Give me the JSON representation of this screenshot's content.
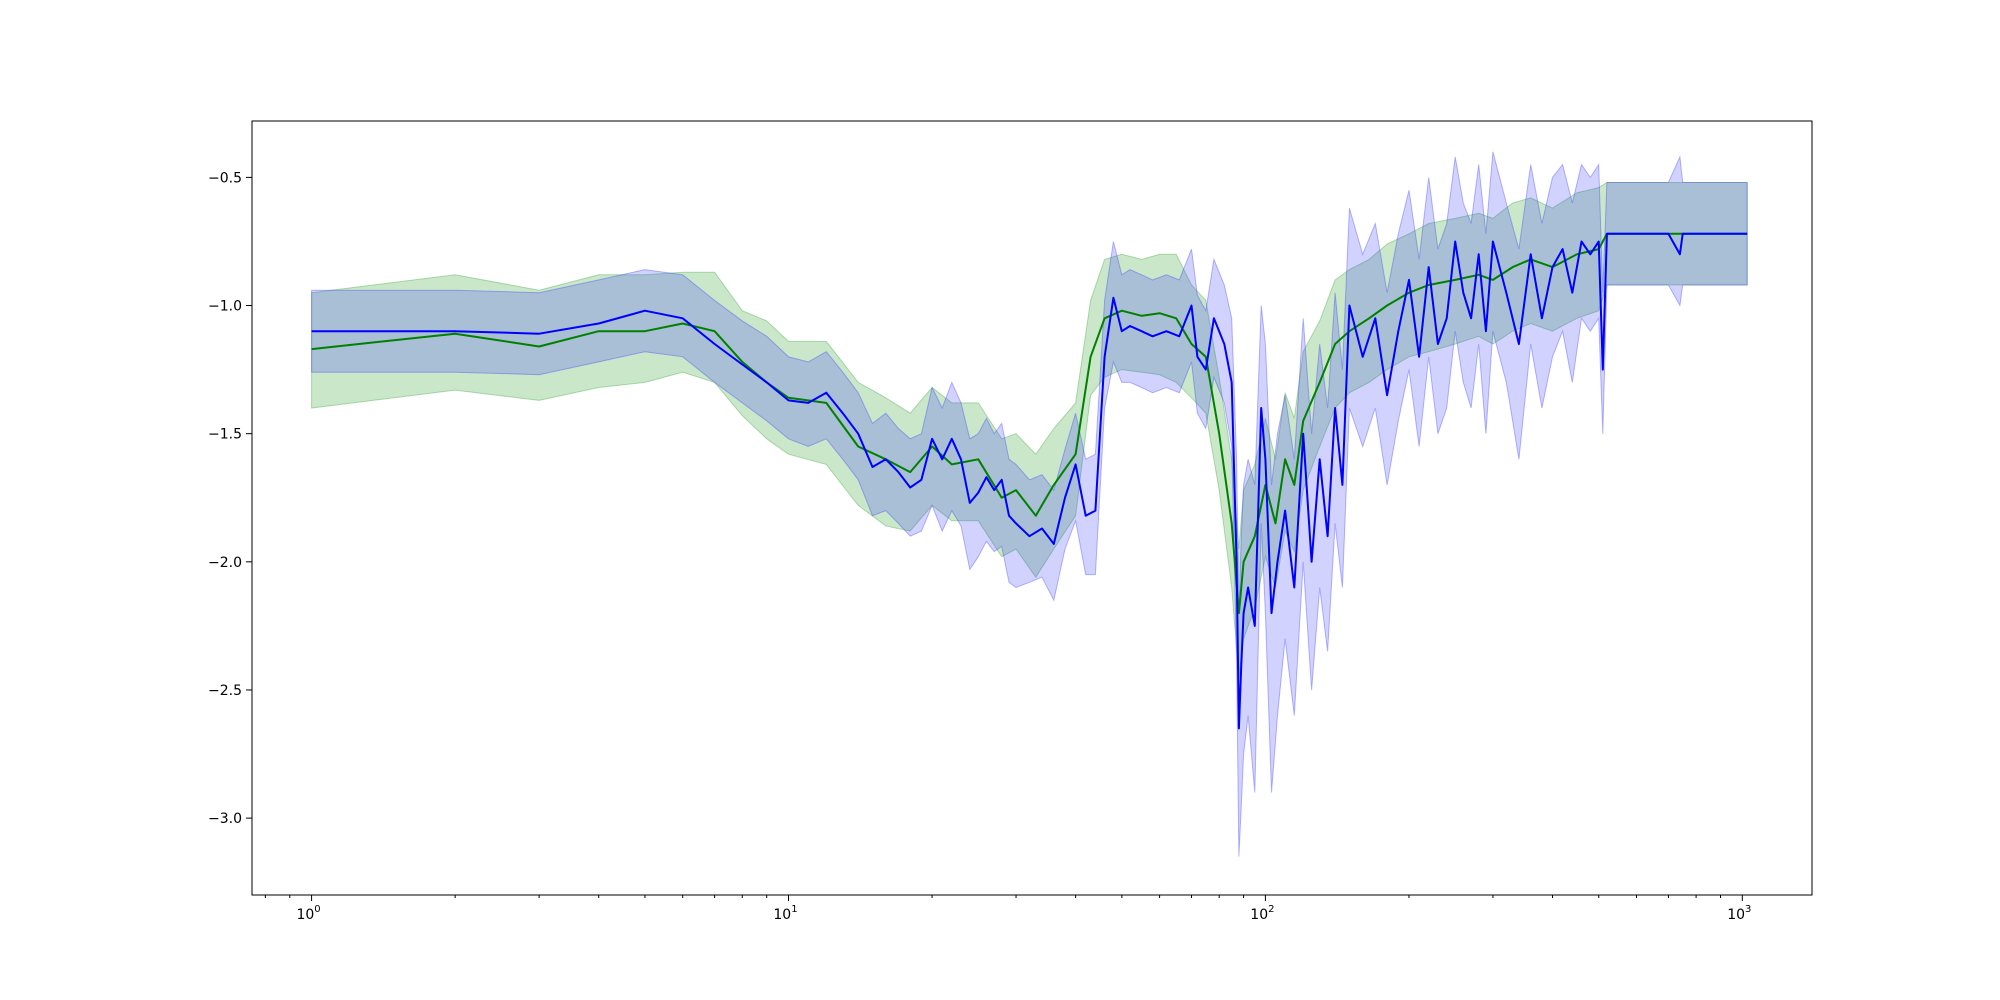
{
  "chart_data": {
    "type": "line",
    "title": "",
    "xlabel": "",
    "ylabel": "",
    "xscale": "log",
    "xlim": [
      0.75,
      1400
    ],
    "ylim": [
      -3.3,
      -0.28
    ],
    "grid": false,
    "yticks": [
      {
        "value": -0.5,
        "label": "−0.5"
      },
      {
        "value": -1.0,
        "label": "−1.0"
      },
      {
        "value": -1.5,
        "label": "−1.5"
      },
      {
        "value": -2.0,
        "label": "−2.0"
      },
      {
        "value": -2.5,
        "label": "−2.5"
      },
      {
        "value": -3.0,
        "label": "−3.0"
      }
    ],
    "xticks": [
      {
        "value": 1,
        "base": "10",
        "exp": "0"
      },
      {
        "value": 10,
        "base": "10",
        "exp": "1"
      },
      {
        "value": 100,
        "base": "10",
        "exp": "2"
      },
      {
        "value": 1000,
        "base": "10",
        "exp": "3"
      }
    ],
    "series": [
      {
        "color": "#008000",
        "band_color": "#2ca02c",
        "band_opacity": 0.25,
        "x": [
          1,
          2,
          3,
          4,
          5,
          6,
          7,
          8,
          9,
          10,
          12,
          14,
          16,
          18,
          20,
          22,
          25,
          28,
          30,
          33,
          36,
          40,
          43,
          46,
          50,
          55,
          60,
          65,
          70,
          75,
          80,
          85,
          88,
          90,
          95,
          100,
          105,
          110,
          115,
          120,
          130,
          140,
          150,
          165,
          180,
          200,
          220,
          250,
          280,
          300,
          330,
          360,
          400,
          450,
          500,
          520,
          600,
          700,
          750,
          800,
          900,
          1024
        ],
        "y": [
          -1.17,
          -1.11,
          -1.16,
          -1.1,
          -1.1,
          -1.07,
          -1.1,
          -1.22,
          -1.3,
          -1.36,
          -1.38,
          -1.55,
          -1.6,
          -1.65,
          -1.55,
          -1.62,
          -1.6,
          -1.75,
          -1.72,
          -1.82,
          -1.7,
          -1.58,
          -1.2,
          -1.05,
          -1.02,
          -1.04,
          -1.03,
          -1.05,
          -1.15,
          -1.2,
          -1.5,
          -1.85,
          -2.2,
          -2.0,
          -1.9,
          -1.7,
          -1.85,
          -1.6,
          -1.7,
          -1.45,
          -1.3,
          -1.15,
          -1.1,
          -1.05,
          -1.0,
          -0.95,
          -0.92,
          -0.9,
          -0.88,
          -0.9,
          -0.85,
          -0.82,
          -0.85,
          -0.8,
          -0.78,
          -0.72,
          -0.72,
          -0.72,
          -0.72,
          -0.72,
          -0.72,
          -0.72
        ],
        "lower": [
          -1.4,
          -1.33,
          -1.37,
          -1.32,
          -1.3,
          -1.26,
          -1.3,
          -1.43,
          -1.52,
          -1.58,
          -1.62,
          -1.78,
          -1.86,
          -1.88,
          -1.78,
          -1.84,
          -1.84,
          -1.98,
          -1.95,
          -2.06,
          -1.95,
          -1.82,
          -1.35,
          -1.28,
          -1.25,
          -1.26,
          -1.27,
          -1.3,
          -1.36,
          -1.42,
          -1.72,
          -2.1,
          -2.45,
          -2.3,
          -2.18,
          -1.98,
          -2.1,
          -1.88,
          -1.96,
          -1.72,
          -1.55,
          -1.4,
          -1.34,
          -1.3,
          -1.25,
          -1.2,
          -1.18,
          -1.15,
          -1.12,
          -1.15,
          -1.1,
          -1.07,
          -1.1,
          -1.05,
          -1.02,
          -0.92,
          -0.92,
          -0.92,
          -0.92,
          -0.92,
          -0.92,
          -0.92
        ],
        "upper": [
          -0.95,
          -0.88,
          -0.94,
          -0.88,
          -0.88,
          -0.87,
          -0.87,
          -1.02,
          -1.06,
          -1.14,
          -1.14,
          -1.3,
          -1.36,
          -1.42,
          -1.32,
          -1.38,
          -1.38,
          -1.52,
          -1.5,
          -1.58,
          -1.48,
          -1.38,
          -0.98,
          -0.82,
          -0.8,
          -0.82,
          -0.8,
          -0.8,
          -0.92,
          -0.98,
          -1.28,
          -1.6,
          -1.95,
          -1.72,
          -1.62,
          -1.44,
          -1.6,
          -1.34,
          -1.44,
          -1.18,
          -1.06,
          -0.9,
          -0.86,
          -0.82,
          -0.76,
          -0.72,
          -0.68,
          -0.66,
          -0.64,
          -0.66,
          -0.6,
          -0.58,
          -0.62,
          -0.56,
          -0.54,
          -0.52,
          -0.52,
          -0.52,
          -0.52,
          -0.52,
          -0.52,
          -0.52
        ]
      },
      {
        "color": "#0000ff",
        "band_color": "#3333ff",
        "band_opacity": 0.22,
        "x": [
          1,
          2,
          3,
          4,
          5,
          6,
          7,
          8,
          9,
          10,
          11,
          12,
          13,
          14,
          15,
          16,
          17,
          18,
          19,
          20,
          21,
          22,
          23,
          24,
          25,
          26,
          27,
          28,
          29,
          30,
          32,
          34,
          36,
          38,
          40,
          42,
          44,
          46,
          48,
          50,
          52,
          55,
          58,
          62,
          66,
          70,
          72,
          75,
          78,
          82,
          85,
          87,
          88,
          89,
          90,
          92,
          95,
          98,
          100,
          103,
          106,
          110,
          115,
          120,
          125,
          130,
          135,
          140,
          145,
          150,
          160,
          170,
          180,
          190,
          200,
          210,
          220,
          230,
          240,
          250,
          260,
          270,
          280,
          290,
          300,
          320,
          340,
          360,
          380,
          400,
          420,
          440,
          460,
          480,
          500,
          510,
          520,
          600,
          700,
          740,
          750,
          760,
          800,
          900,
          1024
        ],
        "y": [
          -1.1,
          -1.1,
          -1.11,
          -1.07,
          -1.02,
          -1.05,
          -1.15,
          -1.23,
          -1.3,
          -1.37,
          -1.38,
          -1.34,
          -1.42,
          -1.5,
          -1.63,
          -1.6,
          -1.65,
          -1.71,
          -1.68,
          -1.52,
          -1.6,
          -1.52,
          -1.6,
          -1.77,
          -1.73,
          -1.67,
          -1.72,
          -1.68,
          -1.82,
          -1.85,
          -1.9,
          -1.87,
          -1.93,
          -1.75,
          -1.62,
          -1.82,
          -1.8,
          -1.2,
          -0.97,
          -1.1,
          -1.08,
          -1.1,
          -1.12,
          -1.1,
          -1.12,
          -1.0,
          -1.2,
          -1.25,
          -1.05,
          -1.15,
          -1.3,
          -2.0,
          -2.65,
          -2.4,
          -2.2,
          -2.1,
          -2.25,
          -1.4,
          -1.6,
          -2.2,
          -2.0,
          -1.8,
          -2.1,
          -1.5,
          -2.0,
          -1.6,
          -1.9,
          -1.4,
          -1.7,
          -1.0,
          -1.2,
          -1.05,
          -1.35,
          -1.1,
          -0.9,
          -1.2,
          -0.85,
          -1.15,
          -1.05,
          -0.75,
          -0.95,
          -1.05,
          -0.8,
          -1.1,
          -0.75,
          -0.95,
          -1.15,
          -0.8,
          -1.05,
          -0.85,
          -0.78,
          -0.95,
          -0.75,
          -0.8,
          -0.75,
          -1.25,
          -0.72,
          -0.72,
          -0.72,
          -0.8,
          -0.72,
          -0.72,
          -0.72,
          -0.72,
          -0.72
        ],
        "lower": [
          -1.26,
          -1.26,
          -1.27,
          -1.22,
          -1.18,
          -1.2,
          -1.3,
          -1.38,
          -1.45,
          -1.52,
          -1.55,
          -1.52,
          -1.6,
          -1.68,
          -1.82,
          -1.8,
          -1.85,
          -1.9,
          -1.88,
          -1.78,
          -1.88,
          -1.8,
          -1.86,
          -2.03,
          -1.98,
          -1.92,
          -1.96,
          -1.94,
          -2.08,
          -2.1,
          -2.08,
          -2.06,
          -2.15,
          -1.95,
          -1.84,
          -2.05,
          -2.05,
          -1.4,
          -1.22,
          -1.3,
          -1.3,
          -1.32,
          -1.34,
          -1.32,
          -1.34,
          -1.22,
          -1.42,
          -1.48,
          -1.28,
          -1.38,
          -1.55,
          -2.4,
          -3.15,
          -2.95,
          -2.75,
          -2.6,
          -2.9,
          -1.85,
          -2.2,
          -2.9,
          -2.6,
          -2.3,
          -2.6,
          -2.0,
          -2.5,
          -2.1,
          -2.35,
          -1.85,
          -2.1,
          -1.4,
          -1.55,
          -1.4,
          -1.7,
          -1.45,
          -1.25,
          -1.55,
          -1.2,
          -1.5,
          -1.4,
          -1.1,
          -1.3,
          -1.4,
          -1.15,
          -1.5,
          -1.1,
          -1.3,
          -1.6,
          -1.15,
          -1.4,
          -1.2,
          -1.1,
          -1.3,
          -1.05,
          -1.1,
          -1.05,
          -1.5,
          -0.92,
          -0.92,
          -0.92,
          -1.0,
          -0.92,
          -0.92,
          -0.92,
          -0.92,
          -0.92
        ],
        "upper": [
          -0.94,
          -0.94,
          -0.95,
          -0.9,
          -0.86,
          -0.88,
          -0.98,
          -1.06,
          -1.12,
          -1.2,
          -1.22,
          -1.18,
          -1.26,
          -1.34,
          -1.46,
          -1.42,
          -1.48,
          -1.52,
          -1.5,
          -1.32,
          -1.4,
          -1.3,
          -1.38,
          -1.52,
          -1.5,
          -1.44,
          -1.5,
          -1.46,
          -1.6,
          -1.62,
          -1.68,
          -1.66,
          -1.72,
          -1.56,
          -1.42,
          -1.6,
          -1.58,
          -0.98,
          -0.75,
          -0.88,
          -0.86,
          -0.88,
          -0.9,
          -0.88,
          -0.9,
          -0.78,
          -0.96,
          -1.02,
          -0.82,
          -0.92,
          -1.05,
          -1.6,
          -2.2,
          -1.9,
          -1.7,
          -1.6,
          -1.7,
          -1.0,
          -1.15,
          -1.7,
          -1.5,
          -1.35,
          -1.6,
          -1.05,
          -1.5,
          -1.15,
          -1.4,
          -0.95,
          -1.25,
          -0.62,
          -0.8,
          -0.68,
          -0.95,
          -0.72,
          -0.55,
          -0.82,
          -0.5,
          -0.78,
          -0.68,
          -0.42,
          -0.6,
          -0.68,
          -0.45,
          -0.72,
          -0.4,
          -0.6,
          -0.78,
          -0.45,
          -0.68,
          -0.5,
          -0.45,
          -0.6,
          -0.45,
          -0.5,
          -0.45,
          -0.95,
          -0.52,
          -0.52,
          -0.52,
          -0.42,
          -0.52,
          -0.52,
          -0.52,
          -0.52,
          -0.52
        ]
      }
    ]
  }
}
